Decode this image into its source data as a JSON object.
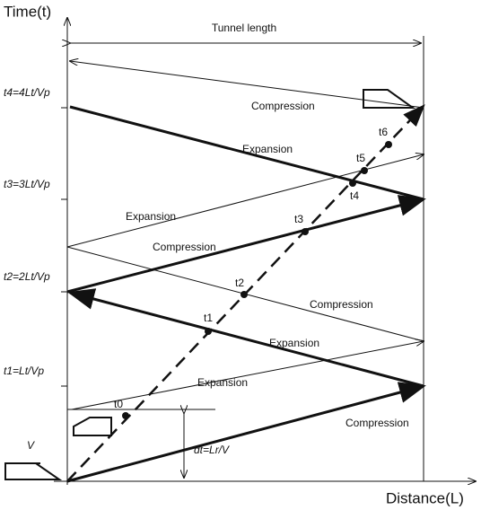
{
  "axes": {
    "y_label": "Time(t)",
    "x_label": "Distance(L)",
    "tunnel_length": "Tunnel length"
  },
  "time_marks": [
    "t4=4Lt/Vp",
    "t3=3Lt/Vp",
    "t2=2Lt/Vp",
    "t1=Lt/Vp"
  ],
  "train": {
    "speed": "V",
    "delay": "dt=Lr/V"
  },
  "waves": [
    "Compression",
    "Expansion",
    "Expansion",
    "Compression",
    "Compression",
    "Expansion",
    "Expansion",
    "Compression"
  ],
  "points": [
    "t0",
    "t1",
    "t2",
    "t3",
    "t4",
    "t5",
    "t6"
  ]
}
